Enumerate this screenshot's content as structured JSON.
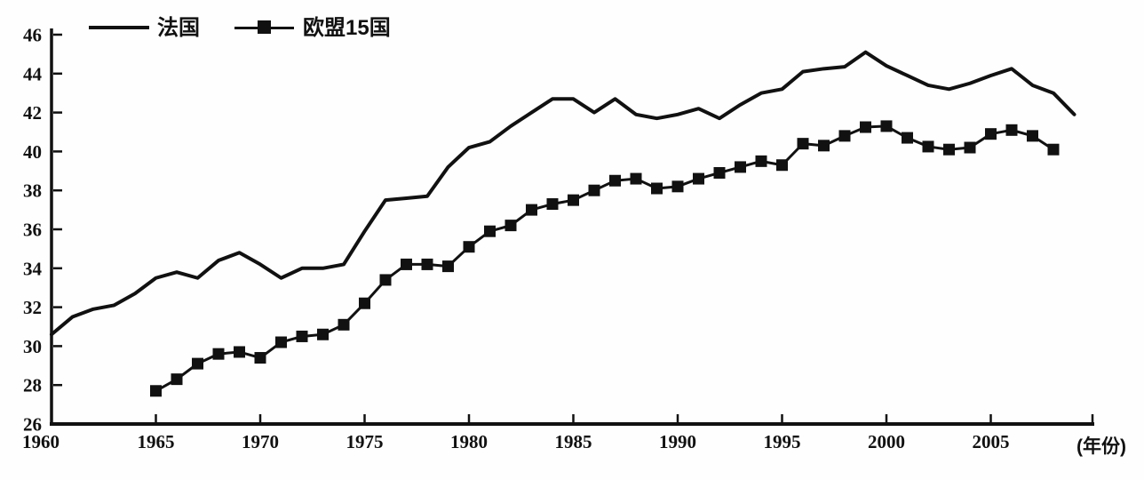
{
  "colors": {
    "ink": "#111111",
    "background": "#fefefe"
  },
  "legend": {
    "items": [
      {
        "label": "法国",
        "marker": "line"
      },
      {
        "label": "欧盟15国",
        "marker": "line-with-square"
      }
    ]
  },
  "axis": {
    "x_unit_label": "(年份)"
  },
  "chart_data": {
    "type": "line",
    "title": "",
    "xlabel": "(年份)",
    "ylabel": "",
    "grid": false,
    "legend_position": "top-left",
    "xlim": [
      1960,
      2010
    ],
    "ylim": [
      26,
      46
    ],
    "x_ticks": [
      1960,
      1965,
      1970,
      1975,
      1980,
      1985,
      1990,
      1995,
      2000,
      2005
    ],
    "y_ticks": [
      26,
      28,
      30,
      32,
      34,
      36,
      38,
      40,
      42,
      44,
      46
    ],
    "series": [
      {
        "name": "法国",
        "marker": "none",
        "x_start": 1960,
        "years": [
          1960,
          1961,
          1962,
          1963,
          1964,
          1965,
          1966,
          1967,
          1968,
          1969,
          1970,
          1971,
          1972,
          1973,
          1974,
          1975,
          1976,
          1977,
          1978,
          1979,
          1980,
          1981,
          1982,
          1983,
          1984,
          1985,
          1986,
          1987,
          1988,
          1989,
          1990,
          1991,
          1992,
          1993,
          1994,
          1995,
          1996,
          1997,
          1998,
          1999,
          2000,
          2001,
          2002,
          2003,
          2004,
          2005,
          2006,
          2007,
          2008,
          2009
        ],
        "values": [
          30.6,
          31.5,
          31.9,
          32.1,
          32.7,
          33.5,
          33.8,
          33.5,
          34.4,
          34.8,
          34.2,
          33.5,
          34.0,
          34.0,
          34.2,
          35.9,
          37.5,
          37.6,
          37.7,
          39.2,
          40.2,
          40.5,
          41.3,
          42.0,
          42.7,
          42.7,
          42.0,
          42.7,
          41.9,
          41.7,
          41.9,
          42.2,
          41.7,
          42.4,
          43.0,
          43.2,
          44.1,
          44.25,
          44.35,
          45.1,
          44.4,
          43.9,
          43.4,
          43.2,
          43.5,
          43.9,
          44.25,
          43.4,
          43.0,
          41.9
        ]
      },
      {
        "name": "欧盟15国",
        "marker": "square",
        "x_start": 1965,
        "years": [
          1965,
          1966,
          1967,
          1968,
          1969,
          1970,
          1971,
          1972,
          1973,
          1974,
          1975,
          1976,
          1977,
          1978,
          1979,
          1980,
          1981,
          1982,
          1983,
          1984,
          1985,
          1986,
          1987,
          1988,
          1989,
          1990,
          1991,
          1992,
          1993,
          1994,
          1995,
          1996,
          1997,
          1998,
          1999,
          2000,
          2001,
          2002,
          2003,
          2004,
          2005,
          2006,
          2007,
          2008
        ],
        "values": [
          27.7,
          28.3,
          29.1,
          29.6,
          29.7,
          29.4,
          30.2,
          30.5,
          30.6,
          31.1,
          32.2,
          33.4,
          34.2,
          34.2,
          34.1,
          35.1,
          35.9,
          36.2,
          37.0,
          37.3,
          37.5,
          38.0,
          38.5,
          38.6,
          38.1,
          38.2,
          38.6,
          38.9,
          39.2,
          39.5,
          39.3,
          40.4,
          40.3,
          40.8,
          41.25,
          41.3,
          40.7,
          40.25,
          40.1,
          40.2,
          40.9,
          41.1,
          40.8,
          40.1
        ]
      }
    ]
  }
}
